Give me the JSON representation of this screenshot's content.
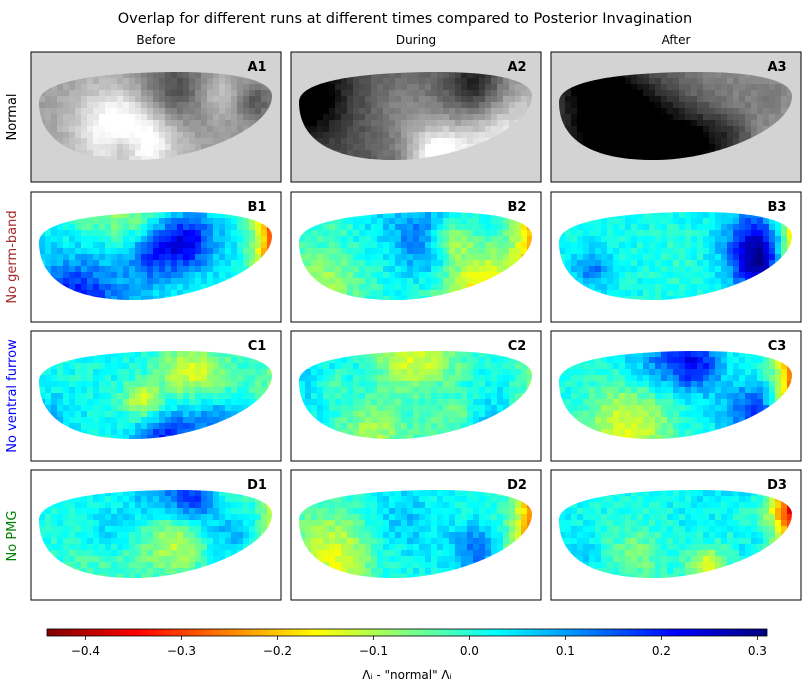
{
  "chart_data": {
    "type": "heatmap",
    "title": "Overlap for different runs at different times compared to Posterior Invagination",
    "columns": [
      "Before",
      "During",
      "After"
    ],
    "rows": [
      {
        "label": "Normal",
        "color": "#000000"
      },
      {
        "label": "No germ-band",
        "color": "#a52a2a"
      },
      {
        "label": "No ventral furrow",
        "color": "#0000ff"
      },
      {
        "label": "No PMG",
        "color": "#008000"
      }
    ],
    "panels": [
      {
        "id": "A1",
        "row": 0,
        "col": 0,
        "colormap": "gray",
        "seed": 11
      },
      {
        "id": "A2",
        "row": 0,
        "col": 1,
        "colormap": "gray",
        "seed": 12
      },
      {
        "id": "A3",
        "row": 0,
        "col": 2,
        "colormap": "gray",
        "seed": 13
      },
      {
        "id": "B1",
        "row": 1,
        "col": 0,
        "colormap": "jet",
        "seed": 21,
        "tip": -0.38
      },
      {
        "id": "B2",
        "row": 1,
        "col": 1,
        "colormap": "jet",
        "seed": 22,
        "tip": -0.28
      },
      {
        "id": "B3",
        "row": 1,
        "col": 2,
        "colormap": "jet",
        "seed": 23,
        "tip": -0.3
      },
      {
        "id": "C1",
        "row": 2,
        "col": 0,
        "colormap": "jet",
        "seed": 31,
        "tip": -0.05
      },
      {
        "id": "C2",
        "row": 2,
        "col": 1,
        "colormap": "jet",
        "seed": 32,
        "tip": -0.1
      },
      {
        "id": "C3",
        "row": 2,
        "col": 2,
        "colormap": "jet",
        "seed": 33,
        "tip": -0.36
      },
      {
        "id": "D1",
        "row": 3,
        "col": 0,
        "colormap": "jet",
        "seed": 41,
        "tip": -0.25
      },
      {
        "id": "D2",
        "row": 3,
        "col": 1,
        "colormap": "jet",
        "seed": 42,
        "tip": -0.33
      },
      {
        "id": "D3",
        "row": 3,
        "col": 2,
        "colormap": "jet",
        "seed": 43,
        "tip": -0.38
      }
    ],
    "colorbar": {
      "colormap": "jet",
      "vmin": -0.44,
      "vmax": 0.31,
      "ticks": [
        -0.4,
        -0.3,
        -0.2,
        -0.1,
        0.0,
        0.1,
        0.2,
        0.3
      ],
      "tick_labels": [
        "−0.4",
        "−0.3",
        "−0.2",
        "−0.1",
        "0.0",
        "0.1",
        "0.2",
        "0.3"
      ],
      "label": "Λᵢ - \"normal\" Λᵢ"
    },
    "background_normal_row": "#d3d3d3",
    "background_other_rows": "#ffffff"
  }
}
